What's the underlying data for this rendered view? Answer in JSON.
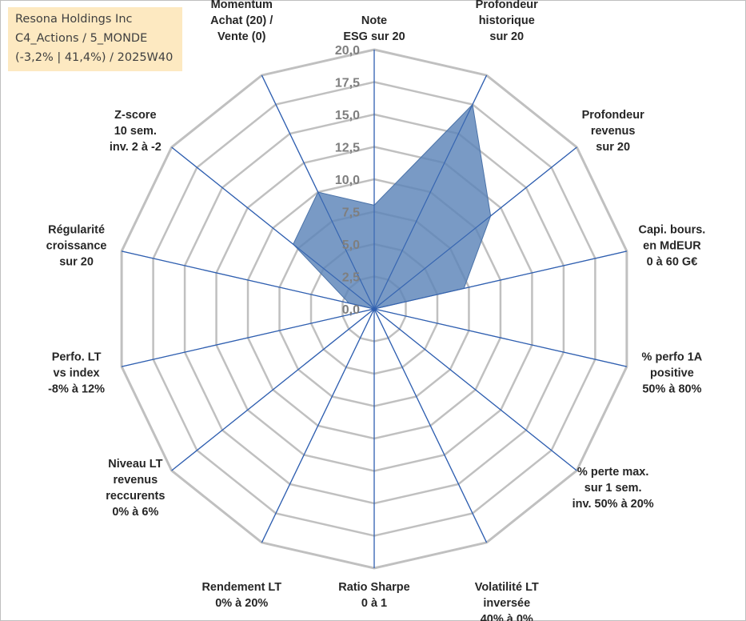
{
  "info": {
    "line1": "Resona Holdings Inc",
    "line2": "C4_Actions / 5_MONDE",
    "line3": "(-3,2% | 41,4%) / 2025W40"
  },
  "colors": {
    "fill": "#5b84b8",
    "axis": "#2f5fb0",
    "grid": "#c0c0c0",
    "highlight_box": "#fde9c1"
  },
  "chart_data": {
    "type": "radar",
    "r_range": [
      0,
      20
    ],
    "r_ticks": [
      "0,0",
      "2,5",
      "5,0",
      "7,5",
      "10,0",
      "12,5",
      "15,0",
      "17,5",
      "20,0"
    ],
    "axes": [
      {
        "lines": [
          "Note",
          "ESG sur 20"
        ],
        "value": 8
      },
      {
        "lines": [
          "Profondeur",
          "historique",
          "sur 20"
        ],
        "value": 17.5
      },
      {
        "lines": [
          "Profondeur",
          "revenus",
          "sur 20"
        ],
        "value": 11.5
      },
      {
        "lines": [
          "Capi. bours.",
          "en MdEUR",
          "0 à 60 G€"
        ],
        "value": 7.1
      },
      {
        "lines": [
          "% perfo 1A",
          "positive",
          "50% à 80%"
        ],
        "value": 0
      },
      {
        "lines": [
          "% perte max.",
          "sur 1 sem.",
          "inv. 50% à 20%"
        ],
        "value": 0
      },
      {
        "lines": [
          "Volatilité LT",
          "inversée",
          "40% à 0%"
        ],
        "value": 0
      },
      {
        "lines": [
          "Ratio Sharpe",
          "0 à 1"
        ],
        "value": 0
      },
      {
        "lines": [
          "Rendement LT",
          "0% à 20%"
        ],
        "value": 0
      },
      {
        "lines": [
          "Niveau LT",
          "revenus",
          "reccurents",
          "0% à 6%"
        ],
        "value": 0
      },
      {
        "lines": [
          "Perfo. LT",
          "vs index",
          "-8% à 12%"
        ],
        "value": 0
      },
      {
        "lines": [
          "Régularité",
          "croissance",
          "sur 20"
        ],
        "value": 2
      },
      {
        "lines": [
          "Z-score",
          "10 sem.",
          "inv. 2 à -2"
        ],
        "value": 8
      },
      {
        "lines": [
          "Momentum",
          "Achat (20) /",
          "Vente (0)"
        ],
        "value": 10
      }
    ]
  }
}
